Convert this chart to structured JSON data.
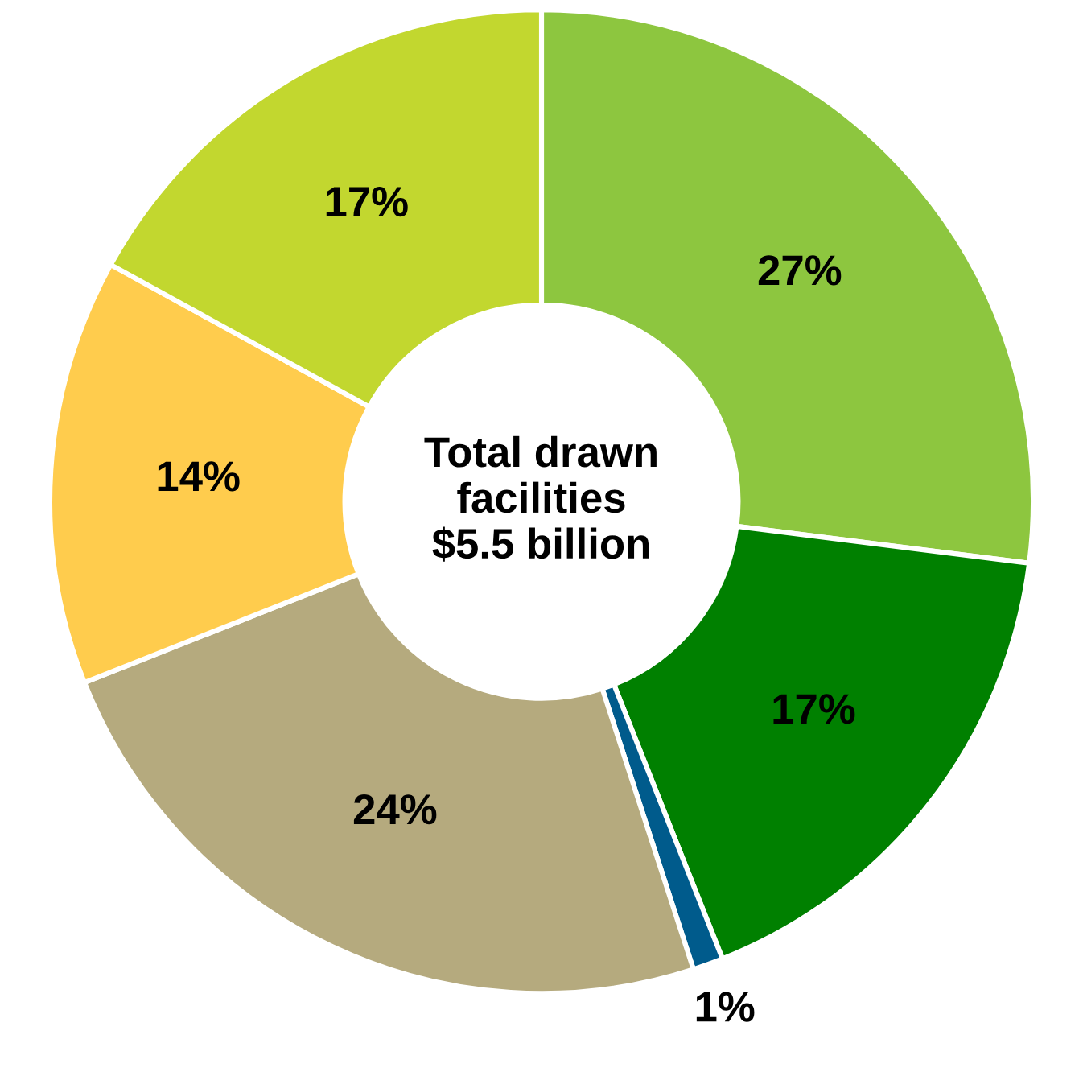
{
  "chart_data": {
    "type": "donut",
    "categories": [
      null,
      null,
      null,
      null,
      null,
      null
    ],
    "values": [
      27,
      17,
      1,
      24,
      14,
      17
    ],
    "colors": [
      "#8dc63f",
      "#008000",
      "#005b8c",
      "#b5aa7e",
      "#ffcc4d",
      "#c2d72f"
    ],
    "value_labels": [
      "27%",
      "17%",
      "1%",
      "24%",
      "14%",
      "17%"
    ],
    "annotations": [
      "Total drawn\nfacilities\n$5.5 billion"
    ],
    "legend": false
  }
}
